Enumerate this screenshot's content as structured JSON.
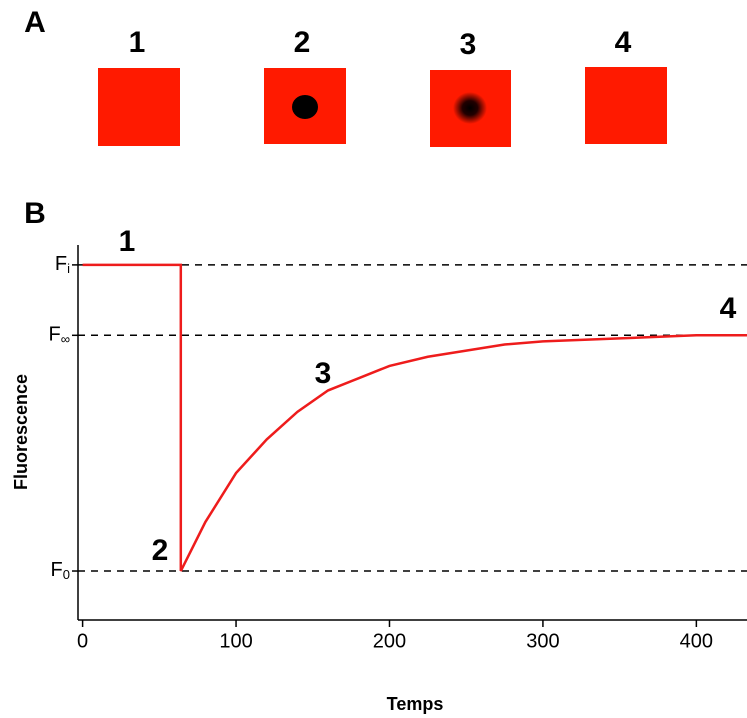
{
  "panels": {
    "a": "A",
    "b": "B"
  },
  "frames": [
    "1",
    "2",
    "3",
    "4"
  ],
  "chart_data": {
    "type": "line",
    "xlabel": "Temps",
    "ylabel": "Fluorescence",
    "x": [
      0,
      64,
      64,
      80,
      100,
      120,
      140,
      160,
      180,
      200,
      225,
      250,
      275,
      300,
      350,
      400,
      433
    ],
    "series": [
      {
        "color": "#ee1c1c",
        "values": [
          1,
          1,
          0,
          0.16,
          0.32,
          0.43,
          0.52,
          0.59,
          0.63,
          0.67,
          0.7,
          0.72,
          0.74,
          0.75,
          0.76,
          0.77,
          0.77
        ]
      }
    ],
    "xlim": [
      -3,
      433
    ],
    "ylim": [
      -0.16,
      1.065
    ],
    "xticks": [
      0,
      100,
      200,
      300,
      400
    ],
    "yticks": [
      {
        "value": 1,
        "label": "F",
        "subscript": "i"
      },
      {
        "value": 0.77,
        "label": "F",
        "subscript": "∞"
      },
      {
        "value": 0,
        "label": "F",
        "subscript": "0"
      }
    ],
    "grid": "dashed",
    "annotations": [
      "1",
      "2",
      "3",
      "4"
    ]
  }
}
